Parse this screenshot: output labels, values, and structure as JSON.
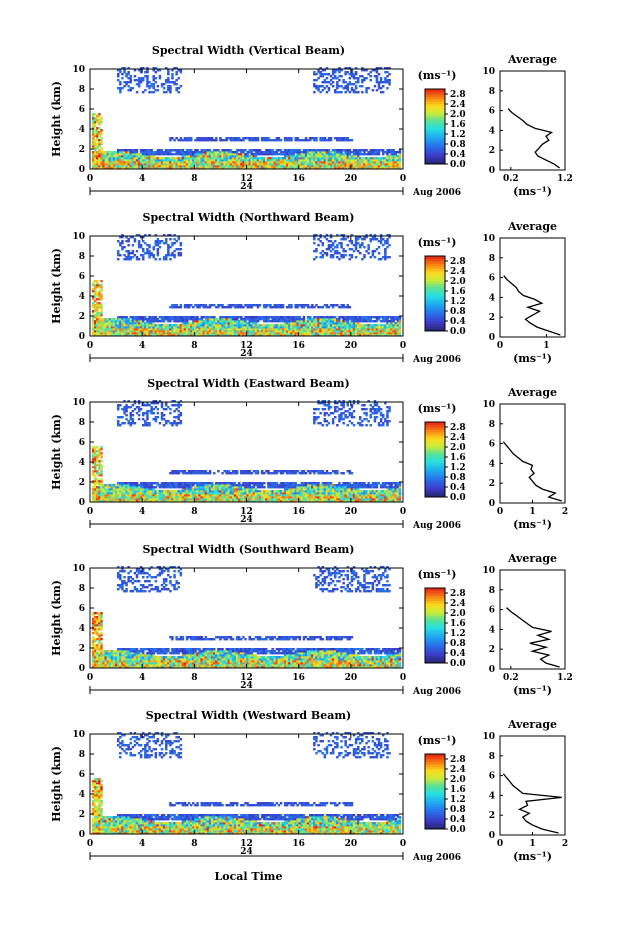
{
  "chart_data": [
    {
      "type": "heatmap",
      "title": "Spectral Width (Vertical Beam)",
      "ylabel": "Height (km)",
      "xticks": [
        "0",
        "4",
        "8",
        "12",
        "16",
        "20",
        "0"
      ],
      "yticks": [
        "0",
        "2",
        "4",
        "6",
        "8",
        "10"
      ],
      "xlim": [
        0,
        24
      ],
      "ylim": [
        0,
        10
      ],
      "date_label": "Aug 2006",
      "day_label": "24",
      "colorbar": {
        "unit": "(ms⁻¹)",
        "ticks": [
          "0.0",
          "0.4",
          "0.8",
          "1.2",
          "1.6",
          "2.0",
          "2.4",
          "2.8"
        ],
        "range": [
          0,
          3.0
        ]
      },
      "profile": {
        "title": "Average",
        "xlabel": "(ms⁻¹)",
        "xticks": [
          "0.2",
          "1.2"
        ],
        "xlim": [
          0,
          1.2
        ],
        "height": [
          0.2,
          0.6,
          1.0,
          1.4,
          1.8,
          2.2,
          2.6,
          3.0,
          3.4,
          3.8,
          4.2,
          4.6,
          5.0,
          5.4,
          5.8,
          6.2
        ],
        "value": [
          1.1,
          1.0,
          0.85,
          0.7,
          0.65,
          0.72,
          0.78,
          0.9,
          0.85,
          0.95,
          0.65,
          0.5,
          0.42,
          0.32,
          0.22,
          0.15
        ]
      }
    },
    {
      "type": "heatmap",
      "title": "Spectral Width (Northward Beam)",
      "ylabel": "Height (km)",
      "xticks": [
        "0",
        "4",
        "8",
        "12",
        "16",
        "20",
        "0"
      ],
      "yticks": [
        "0",
        "2",
        "4",
        "6",
        "8",
        "10"
      ],
      "xlim": [
        0,
        24
      ],
      "ylim": [
        0,
        10
      ],
      "date_label": "Aug 2006",
      "day_label": "24",
      "colorbar": {
        "unit": "(ms⁻¹)",
        "ticks": [
          "0.0",
          "0.4",
          "0.8",
          "1.2",
          "1.6",
          "2.0",
          "2.4",
          "2.8"
        ],
        "range": [
          0,
          3.0
        ]
      },
      "profile": {
        "title": "Average",
        "xlabel": "(ms⁻¹)",
        "xticks": [
          "0",
          "1"
        ],
        "xlim": [
          0,
          1.4
        ],
        "height": [
          0.2,
          0.6,
          1.0,
          1.4,
          1.8,
          2.2,
          2.6,
          3.0,
          3.4,
          3.8,
          4.2,
          4.6,
          5.0,
          5.4,
          5.8,
          6.2
        ],
        "value": [
          1.3,
          1.05,
          0.8,
          0.65,
          0.55,
          0.7,
          0.85,
          0.6,
          0.9,
          0.75,
          0.5,
          0.4,
          0.35,
          0.25,
          0.15,
          0.08
        ]
      }
    },
    {
      "type": "heatmap",
      "title": "Spectral Width (Eastward Beam)",
      "ylabel": "Height (km)",
      "xticks": [
        "0",
        "4",
        "8",
        "12",
        "16",
        "20",
        "0"
      ],
      "yticks": [
        "0",
        "2",
        "4",
        "6",
        "8",
        "10"
      ],
      "xlim": [
        0,
        24
      ],
      "ylim": [
        0,
        10
      ],
      "date_label": "Aug 2006",
      "day_label": "24",
      "colorbar": {
        "unit": "(ms⁻¹)",
        "ticks": [
          "0.0",
          "0.4",
          "0.8",
          "1.2",
          "1.6",
          "2.0",
          "2.4",
          "2.8"
        ],
        "range": [
          0,
          3.0
        ]
      },
      "profile": {
        "title": "Average",
        "xlabel": "(ms⁻¹)",
        "xticks": [
          "0",
          "1",
          "2"
        ],
        "xlim": [
          0,
          2
        ],
        "height": [
          0.2,
          0.6,
          1.0,
          1.4,
          1.8,
          2.2,
          2.6,
          3.0,
          3.4,
          3.8,
          4.2,
          4.6,
          5.0,
          5.4,
          5.8,
          6.2
        ],
        "value": [
          1.9,
          1.5,
          1.7,
          1.3,
          1.1,
          1.0,
          0.9,
          1.05,
          0.95,
          1.0,
          0.7,
          0.55,
          0.4,
          0.3,
          0.2,
          0.1
        ]
      }
    },
    {
      "type": "heatmap",
      "title": "Spectral Width (Southward Beam)",
      "ylabel": "Height (km)",
      "xticks": [
        "0",
        "4",
        "8",
        "12",
        "16",
        "20",
        "0"
      ],
      "yticks": [
        "0",
        "2",
        "4",
        "6",
        "8",
        "10"
      ],
      "xlim": [
        0,
        24
      ],
      "ylim": [
        0,
        10
      ],
      "date_label": "Aug 2006",
      "day_label": "24",
      "colorbar": {
        "unit": "(ms⁻¹)",
        "ticks": [
          "0.0",
          "0.4",
          "0.8",
          "1.2",
          "1.6",
          "2.0",
          "2.4",
          "2.8"
        ],
        "range": [
          0,
          3.0
        ]
      },
      "profile": {
        "title": "Average",
        "xlabel": "(ms⁻¹)",
        "xticks": [
          "0.2",
          "1.2"
        ],
        "xlim": [
          0,
          1.2
        ],
        "height": [
          0.2,
          0.6,
          1.0,
          1.4,
          1.8,
          2.2,
          2.6,
          3.0,
          3.4,
          3.8,
          4.2,
          4.6,
          5.0,
          5.4,
          5.8,
          6.2
        ],
        "value": [
          1.1,
          0.85,
          0.75,
          0.9,
          0.6,
          0.85,
          0.55,
          0.9,
          0.7,
          0.95,
          0.6,
          0.5,
          0.4,
          0.3,
          0.2,
          0.12
        ]
      }
    },
    {
      "type": "heatmap",
      "title": "Spectral Width (Westward Beam)",
      "ylabel": "Height (km)",
      "xlabel": "Local Time",
      "xticks": [
        "0",
        "4",
        "8",
        "12",
        "16",
        "20",
        "0"
      ],
      "yticks": [
        "0",
        "2",
        "4",
        "6",
        "8",
        "10"
      ],
      "xlim": [
        0,
        24
      ],
      "ylim": [
        0,
        10
      ],
      "date_label": "Aug 2006",
      "day_label": "24",
      "colorbar": {
        "unit": "(ms⁻¹)",
        "ticks": [
          "0.0",
          "0.4",
          "0.8",
          "1.2",
          "1.6",
          "2.0",
          "2.4",
          "2.8"
        ],
        "range": [
          0,
          3.0
        ]
      },
      "profile": {
        "title": "Average",
        "xlabel": "(ms⁻¹)",
        "xticks": [
          "0",
          "1",
          "2"
        ],
        "xlim": [
          0,
          2
        ],
        "height": [
          0.2,
          0.6,
          1.0,
          1.4,
          1.8,
          2.2,
          2.6,
          3.0,
          3.4,
          3.8,
          4.2,
          4.6,
          5.0,
          5.4,
          5.8,
          6.2
        ],
        "value": [
          1.8,
          1.3,
          1.0,
          0.8,
          0.7,
          0.9,
          0.6,
          0.85,
          0.8,
          1.9,
          0.7,
          0.55,
          0.4,
          0.3,
          0.2,
          0.1
        ]
      }
    }
  ]
}
